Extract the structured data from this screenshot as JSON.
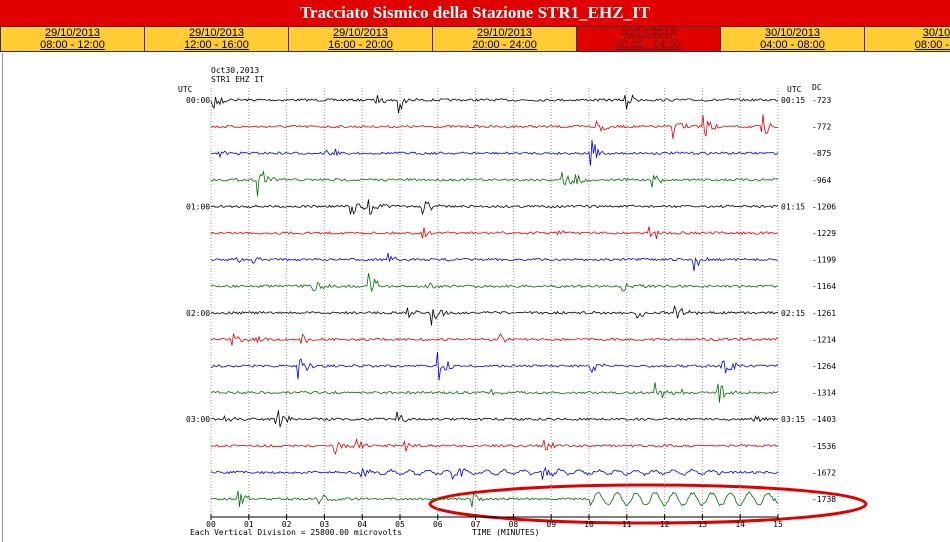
{
  "header": {
    "title": "Tracciato Sismico della Stazione STR1_EHZ_IT"
  },
  "tabs": [
    {
      "date": "29/10/2013",
      "time": "08:00 - 12:00"
    },
    {
      "date": "29/10/2013",
      "time": "12:00 - 16:00"
    },
    {
      "date": "29/10/2013",
      "time": "16:00 - 20:00"
    },
    {
      "date": "29/10/2013",
      "time": "20:00 - 24:00"
    },
    {
      "date": "30/10/2013",
      "time": "00:00 - 04:00"
    },
    {
      "date": "30/10/2013",
      "time": "04:00 - 08:00"
    },
    {
      "date": "30/10",
      "time": "08:00 - 1"
    }
  ],
  "plot": {
    "date": "Oct30,2013",
    "station": "STR1 EHZ IT",
    "left_unit": "UTC",
    "right_unit": "UTC",
    "dc_label": "DC",
    "left_times": [
      "00:00",
      "01:00",
      "02:00",
      "03:00"
    ],
    "right_times": [
      "00:15",
      "01:15",
      "02:15",
      "03:15"
    ],
    "dc_values": [
      -723,
      -772,
      -875,
      -964,
      -1206,
      -1229,
      -1199,
      -1164,
      -1261,
      -1214,
      -1264,
      -1314,
      -1403,
      -1536,
      -1672,
      -1738
    ],
    "x_ticks": [
      "00",
      "01",
      "02",
      "03",
      "04",
      "05",
      "06",
      "07",
      "08",
      "09",
      "10",
      "11",
      "12",
      "13",
      "14",
      "15"
    ],
    "x_label": "TIME (MINUTES)",
    "note": "Each Vertical Division = 25800.00 microvolts"
  }
}
